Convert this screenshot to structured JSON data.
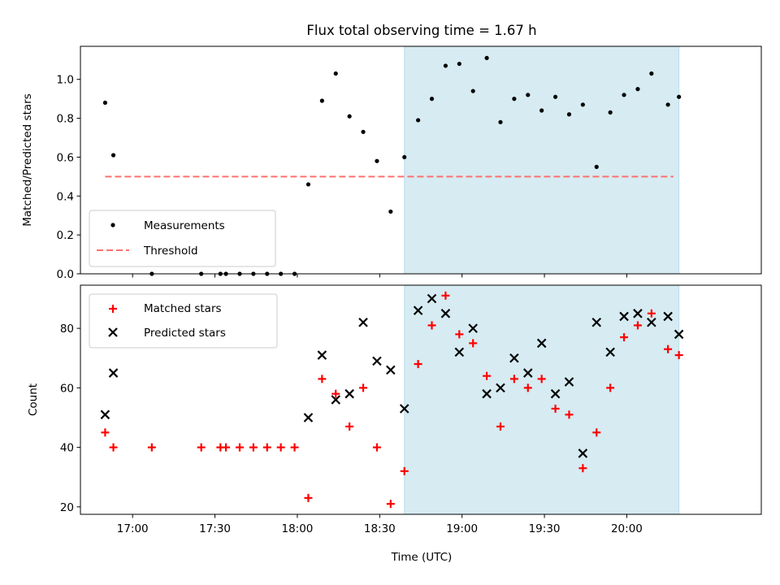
{
  "chart_data": {
    "type": "scatter",
    "title": "Flux total observing time = 1.67 h",
    "x_unit": "UTC time (HH:MM)",
    "xlabel": "Time (UTC)",
    "xlim": [
      "16:41",
      "20:49"
    ],
    "x_ticks": [
      "17:00",
      "17:30",
      "18:00",
      "18:30",
      "19:00",
      "19:30",
      "20:00"
    ],
    "colors": {
      "shade": "#add8e6",
      "measurement": "#000000",
      "threshold": "#ff7070",
      "matched": "#ff0000",
      "predicted": "#000000"
    },
    "panels": [
      {
        "ylabel": "Matched/Predicted stars",
        "ylim": [
          0,
          1.17
        ],
        "y_ticks": [
          "0.0",
          "0.2",
          "0.4",
          "0.6",
          "0.8",
          "1.0"
        ],
        "legend": {
          "placement": "lower-left",
          "entries": [
            "Measurements",
            "Threshold"
          ]
        },
        "shaded_span": [
          "18:39",
          "20:19"
        ],
        "threshold": {
          "name": "Threshold",
          "value": 0.5,
          "x_range": [
            "16:50",
            "20:17"
          ]
        },
        "series": [
          {
            "name": "Measurements",
            "marker": "dot",
            "x": [
              "16:50",
              "16:53",
              "17:07",
              "17:25",
              "17:32",
              "17:34",
              "17:39",
              "17:44",
              "17:49",
              "17:54",
              "17:59",
              "18:04",
              "18:09",
              "18:14",
              "18:19",
              "18:24",
              "18:29",
              "18:34",
              "18:39",
              "18:44",
              "18:49",
              "18:54",
              "18:59",
              "19:04",
              "19:09",
              "19:14",
              "19:19",
              "19:24",
              "19:29",
              "19:34",
              "19:39",
              "19:44",
              "19:49",
              "19:54",
              "19:59",
              "20:04",
              "20:09",
              "20:15",
              "20:19"
            ],
            "y": [
              0.88,
              0.61,
              0.0,
              0.0,
              0.0,
              0.0,
              0.0,
              0.0,
              0.0,
              0.0,
              0.0,
              0.46,
              0.89,
              1.03,
              0.81,
              0.73,
              0.58,
              0.32,
              0.6,
              0.79,
              0.9,
              1.07,
              1.08,
              0.94,
              1.11,
              0.78,
              0.9,
              0.92,
              0.84,
              0.91,
              0.82,
              0.87,
              0.55,
              0.83,
              0.92,
              0.95,
              1.03,
              0.87,
              0.91
            ]
          }
        ]
      },
      {
        "ylabel": "Count",
        "ylim": [
          17.5,
          94.5
        ],
        "y_ticks": [
          "20",
          "40",
          "60",
          "80"
        ],
        "legend": {
          "placement": "upper-left",
          "entries": [
            "Matched stars",
            "Predicted stars"
          ]
        },
        "shaded_span": [
          "18:39",
          "20:19"
        ],
        "series": [
          {
            "name": "Matched stars",
            "marker": "plus",
            "x": [
              "16:50",
              "16:53",
              "17:07",
              "17:25",
              "17:32",
              "17:34",
              "17:39",
              "17:44",
              "17:49",
              "17:54",
              "17:59",
              "18:04",
              "18:09",
              "18:14",
              "18:19",
              "18:24",
              "18:29",
              "18:34",
              "18:39",
              "18:44",
              "18:49",
              "18:54",
              "18:59",
              "19:04",
              "19:09",
              "19:14",
              "19:19",
              "19:24",
              "19:29",
              "19:34",
              "19:39",
              "19:44",
              "19:49",
              "19:54",
              "19:59",
              "20:04",
              "20:09",
              "20:15",
              "20:19"
            ],
            "y": [
              45,
              40,
              40,
              40,
              40,
              40,
              40,
              40,
              40,
              40,
              40,
              23,
              63,
              58,
              47,
              60,
              40,
              21,
              32,
              68,
              81,
              91,
              78,
              75,
              64,
              47,
              63,
              60,
              63,
              53,
              51,
              33,
              45,
              60,
              77,
              81,
              85,
              73,
              71
            ]
          },
          {
            "name": "Predicted stars",
            "marker": "x",
            "x": [
              "16:50",
              "16:53",
              "18:04",
              "18:09",
              "18:14",
              "18:19",
              "18:24",
              "18:29",
              "18:34",
              "18:39",
              "18:44",
              "18:49",
              "18:54",
              "18:59",
              "19:04",
              "19:09",
              "19:14",
              "19:19",
              "19:24",
              "19:29",
              "19:34",
              "19:39",
              "19:44",
              "19:49",
              "19:54",
              "19:59",
              "20:04",
              "20:09",
              "20:15",
              "20:19"
            ],
            "y": [
              51,
              65,
              50,
              71,
              56,
              58,
              82,
              69,
              66,
              53,
              86,
              90,
              85,
              72,
              80,
              58,
              60,
              70,
              65,
              75,
              58,
              62,
              38,
              82,
              72,
              84,
              85,
              82,
              84,
              78
            ]
          }
        ]
      }
    ]
  }
}
